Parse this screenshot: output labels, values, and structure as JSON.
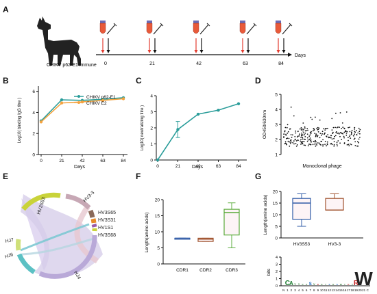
{
  "panels": {
    "A": "A",
    "B": "B",
    "C": "C",
    "D": "D",
    "E": "E",
    "F": "F",
    "G": "G"
  },
  "colors": {
    "teal": "#2a9d9a",
    "orange": "#f4a340",
    "red": "#e23b2e",
    "blue_box": "#2e5aa6",
    "brown_box": "#a0522d",
    "green_box": "#5aab3b",
    "chord_pink": "#e8c6cc"
  },
  "panel_a": {
    "caption": "CHIKV p62-E1 immune",
    "axis_label": "Days",
    "days": [
      "0",
      "21",
      "42",
      "63",
      "84"
    ]
  },
  "chart_data": [
    {
      "panel": "B",
      "type": "line",
      "ylabel": "Log10( binding IgG titre )",
      "xlabel": "Days",
      "x": [
        0,
        21,
        42,
        63,
        84
      ],
      "xticks": [
        "0",
        "21",
        "42",
        "63",
        "84"
      ],
      "yticks": [
        "0",
        "2",
        "4",
        "6"
      ],
      "ylim": [
        0,
        6.5
      ],
      "legend": "top-right",
      "series": [
        {
          "name": "CHIKV p62-E1",
          "color": "#2a9d9a",
          "values": [
            3.2,
            5.2,
            5.15,
            5.25,
            5.4
          ]
        },
        {
          "name": "CHIKV E2",
          "color": "#f4a340",
          "values": [
            3.1,
            4.9,
            5.0,
            5.15,
            5.3
          ]
        }
      ]
    },
    {
      "panel": "C",
      "type": "line",
      "ylabel": "Log10( neutralizing titre )",
      "xlabel": "Days",
      "x": [
        0,
        21,
        42,
        63,
        84
      ],
      "xticks": [
        "0",
        "21",
        "42",
        "63",
        "84"
      ],
      "yticks": [
        "0",
        "1",
        "2",
        "3",
        "4"
      ],
      "ylim": [
        0,
        4
      ],
      "series": [
        {
          "color": "#2a9d9a",
          "values": [
            0,
            1.9,
            2.85,
            3.1,
            3.5
          ],
          "err": [
            0,
            0.5,
            0,
            0,
            0
          ]
        }
      ]
    },
    {
      "panel": "D",
      "type": "scatter",
      "ylabel": "OD450/630nm",
      "xlabel": "Monoclonal phage",
      "yticks": [
        "1",
        "2",
        "3",
        "4",
        "5"
      ],
      "ylim": [
        1,
        5
      ],
      "n_points": 280
    },
    {
      "panel": "F",
      "type": "box",
      "ylabel": "Length(amino acids)",
      "categories": [
        "CDR1",
        "CDR2",
        "CDR3"
      ],
      "yticks": [
        "0",
        "5",
        "10",
        "15",
        "20"
      ],
      "ylim": [
        0,
        20
      ],
      "boxes": [
        {
          "min": 8,
          "q1": 8,
          "median": 8,
          "q3": 8,
          "max": 8,
          "color": "#2e5aa6"
        },
        {
          "min": 7,
          "q1": 7,
          "median": 7.7,
          "q3": 8,
          "max": 8,
          "color": "#a0522d"
        },
        {
          "min": 5,
          "q1": 9,
          "median": 16,
          "q3": 17,
          "max": 19,
          "color": "#5aab3b"
        }
      ]
    },
    {
      "panel": "G",
      "type": "box",
      "ylabel": "Length(amino acids)",
      "categories": [
        "HV3S53",
        "HV3-3"
      ],
      "yticks": [
        "0",
        "5",
        "10",
        "15",
        "20"
      ],
      "ylim": [
        0,
        20
      ],
      "boxes": [
        {
          "min": 5,
          "q1": 8,
          "median": 15,
          "q3": 17,
          "max": 19,
          "color": "#2e5aa6"
        },
        {
          "min": 12,
          "q1": 12,
          "median": 12,
          "q3": 17,
          "max": 19,
          "color": "#a0522d"
        }
      ]
    }
  ],
  "panel_e": {
    "segments": [
      "HV3S53",
      "HV3-3",
      "HV3S65",
      "HV3S31",
      "HV1S1",
      "HV3S68",
      "HJ4",
      "HJ6",
      "HJ7"
    ]
  },
  "logo": {
    "ylabel": "bits",
    "yticks": [
      "0",
      "1",
      "2",
      "3",
      "4"
    ],
    "positions": [
      "N",
      "1",
      "2",
      "3",
      "4",
      "5",
      "6",
      "7",
      "8",
      "9",
      "10",
      "11",
      "12",
      "13",
      "14",
      "15",
      "16",
      "17",
      "18",
      "19",
      "20",
      "21",
      "C"
    ]
  }
}
